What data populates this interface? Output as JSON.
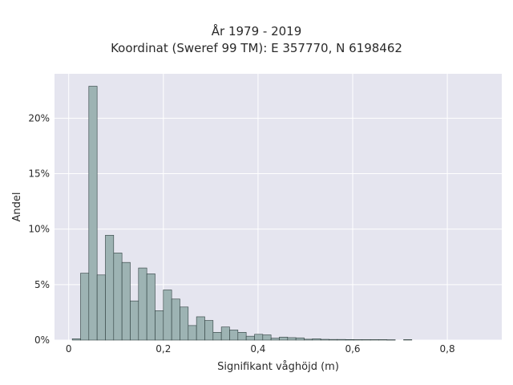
{
  "chart_data": {
    "type": "bar",
    "title_lines": [
      "År 1979 - 2019",
      "Koordinat (Sweref 99 TM): E 357770, N 6198462"
    ],
    "xlabel": "Signifikant våghöjd (m)",
    "ylabel": "Andel",
    "xlim": [
      -0.03,
      0.915
    ],
    "ylim": [
      0,
      0.24
    ],
    "x_ticks": [
      0,
      0.2,
      0.4,
      0.6,
      0.8
    ],
    "x_tick_labels": [
      "0",
      "0,2",
      "0,4",
      "0,6",
      "0,8"
    ],
    "y_ticks": [
      0,
      0.05,
      0.1,
      0.15,
      0.2
    ],
    "y_tick_labels": [
      "0%",
      "5%",
      "10%",
      "15%",
      "20%"
    ],
    "bin_width": 0.0175,
    "bin_starts": [
      0.0075,
      0.025,
      0.0425,
      0.06,
      0.0775,
      0.095,
      0.1125,
      0.13,
      0.1475,
      0.165,
      0.1825,
      0.2,
      0.2175,
      0.235,
      0.2525,
      0.27,
      0.2875,
      0.305,
      0.3225,
      0.34,
      0.3575,
      0.375,
      0.3925,
      0.41,
      0.4275,
      0.445,
      0.4625,
      0.48,
      0.4975,
      0.515,
      0.5325,
      0.55,
      0.5675,
      0.585,
      0.6025,
      0.62,
      0.6375,
      0.655,
      0.6725,
      0.69,
      0.7075
    ],
    "values": [
      0.0012,
      0.0603,
      0.2288,
      0.0587,
      0.0945,
      0.0785,
      0.07,
      0.0353,
      0.065,
      0.0597,
      0.0265,
      0.0452,
      0.037,
      0.0298,
      0.0131,
      0.021,
      0.0177,
      0.007,
      0.0118,
      0.0091,
      0.007,
      0.0035,
      0.0052,
      0.0047,
      0.0017,
      0.0027,
      0.0022,
      0.002,
      0.0008,
      0.0012,
      0.0007,
      0.0006,
      0.0006,
      0.0005,
      0.0004,
      0.0004,
      0.0004,
      0.0004,
      0.0003,
      0.0,
      0.0004
    ],
    "bar_color": "#9db3b3",
    "bar_edge_color": "#2e3e3e",
    "plot_bg": "#e5e5ef",
    "grid_color": "#ffffff",
    "grid": true
  }
}
